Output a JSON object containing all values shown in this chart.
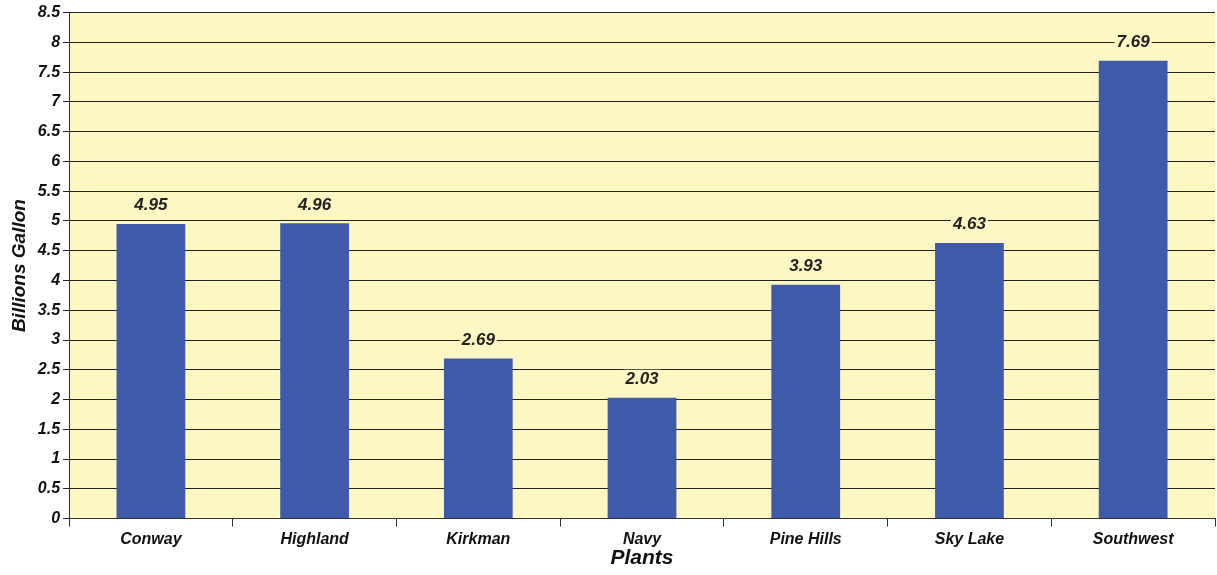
{
  "chart_data": {
    "type": "bar",
    "categories": [
      "Conway",
      "Highland",
      "Kirkman",
      "Navy",
      "Pine Hills",
      "Sky Lake",
      "Southwest"
    ],
    "values": [
      4.95,
      4.96,
      2.69,
      2.03,
      3.93,
      4.63,
      7.69
    ],
    "color": "#3f5aa9",
    "xlabel": "Plants",
    "ylabel": "Billions Gallon",
    "ylim": [
      0,
      8.5
    ],
    "yticks": [
      0,
      0.5,
      1,
      1.5,
      2,
      2.5,
      3,
      3.5,
      4,
      4.5,
      5,
      5.5,
      6,
      6.5,
      7,
      7.5,
      8,
      8.5
    ],
    "grid": "y",
    "data_labels": true,
    "legend": false
  }
}
